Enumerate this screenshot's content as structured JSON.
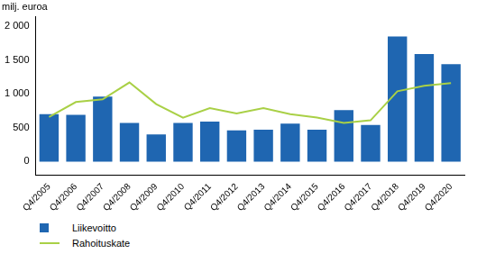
{
  "chart_data": {
    "type": "bar",
    "ylabel": "milj. euroa",
    "categories": [
      "Q4/2005",
      "Q4/2006",
      "Q4/2007",
      "Q4/2008",
      "Q4/2009",
      "Q4/2010",
      "Q4/2011",
      "Q4/2012",
      "Q4/2013",
      "Q4/2014",
      "Q4/2015",
      "Q4/2016",
      "Q4/2017",
      "Q4/2018",
      "Q4/2019",
      "Q4/2020"
    ],
    "series": [
      {
        "name": "Liikevoitto",
        "type": "bar",
        "color": "#1f66b1",
        "values": [
          700,
          690,
          960,
          570,
          400,
          570,
          590,
          460,
          470,
          560,
          470,
          760,
          540,
          1850,
          1590,
          1440
        ]
      },
      {
        "name": "Rahoituskate",
        "type": "line",
        "color": "#a9d046",
        "values": [
          660,
          880,
          920,
          1170,
          850,
          650,
          790,
          710,
          790,
          700,
          650,
          570,
          610,
          1040,
          1120,
          1160
        ]
      }
    ],
    "ylim": [
      -200,
      2150
    ],
    "yticks": [
      0,
      500,
      {
        "value": 1000,
        "label": "1 000"
      },
      {
        "value": 1500,
        "label": "1 500"
      },
      {
        "value": 2000,
        "label": "2 000"
      }
    ],
    "grid": false,
    "legend": "lower left"
  }
}
